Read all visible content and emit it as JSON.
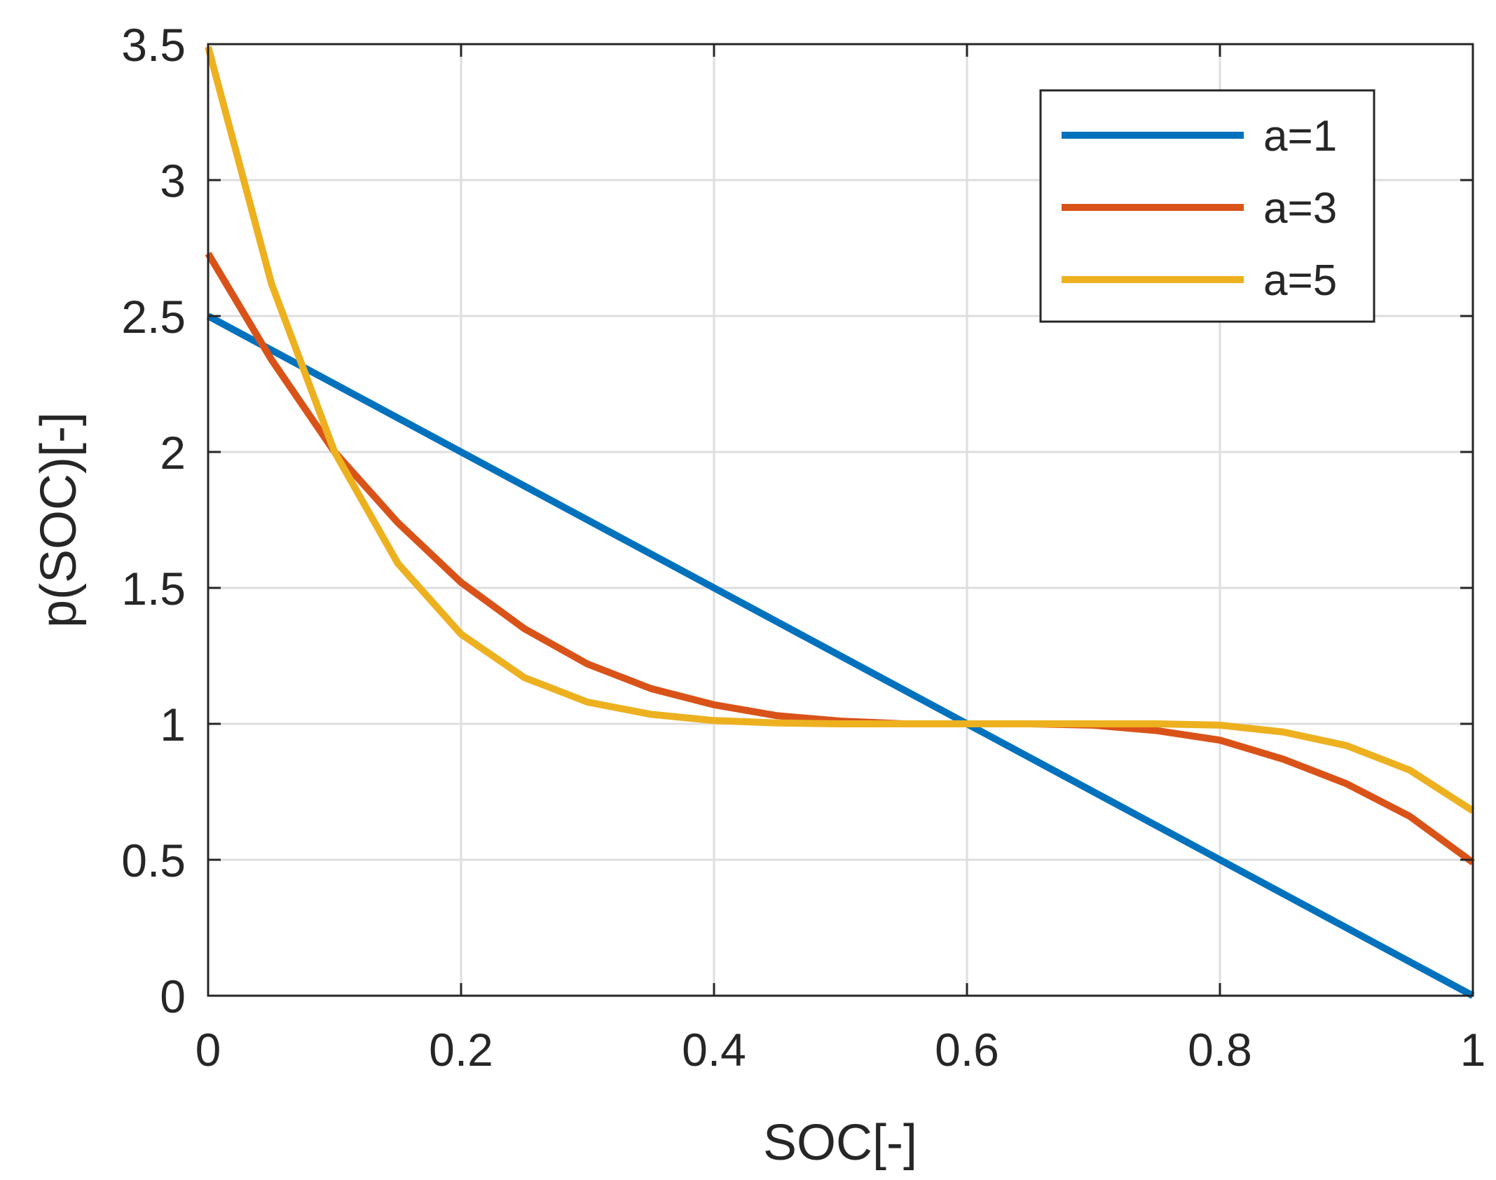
{
  "chart_data": {
    "type": "line",
    "title": "",
    "xlabel": "SOC[-]",
    "ylabel": "p(SOC)[-]",
    "xlim": [
      0,
      1
    ],
    "ylim": [
      0,
      3.5
    ],
    "grid": true,
    "legend_position": "top-right",
    "x_ticks": [
      0,
      0.2,
      0.4,
      0.6,
      0.8,
      1
    ],
    "x_tick_labels": [
      "0",
      "0.2",
      "0.4",
      "0.6",
      "0.8",
      "1"
    ],
    "y_ticks": [
      0,
      0.5,
      1,
      1.5,
      2,
      2.5,
      3,
      3.5
    ],
    "y_tick_labels": [
      "0",
      "0.5",
      "1",
      "1.5",
      "2",
      "2.5",
      "3",
      "3.5"
    ],
    "x": [
      0,
      0.05,
      0.1,
      0.15,
      0.2,
      0.25,
      0.3,
      0.35,
      0.4,
      0.45,
      0.5,
      0.55,
      0.6,
      0.65,
      0.7,
      0.75,
      0.8,
      0.85,
      0.9,
      0.95,
      1
    ],
    "series": [
      {
        "name": "a=1",
        "color": "#0072BD",
        "values": [
          2.5,
          2.375,
          2.25,
          2.125,
          2.0,
          1.875,
          1.75,
          1.625,
          1.5,
          1.375,
          1.25,
          1.125,
          1.0,
          0.875,
          0.75,
          0.625,
          0.5,
          0.375,
          0.25,
          0.125,
          0.0
        ]
      },
      {
        "name": "a=3",
        "color": "#D95319",
        "values": [
          2.73,
          2.34,
          2.0,
          1.74,
          1.52,
          1.35,
          1.22,
          1.13,
          1.07,
          1.03,
          1.01,
          1.0,
          1.0,
          1.0,
          0.995,
          0.975,
          0.94,
          0.87,
          0.78,
          0.66,
          0.49
        ]
      },
      {
        "name": "a=5",
        "color": "#EDB120",
        "values": [
          3.49,
          2.62,
          2.0,
          1.59,
          1.33,
          1.17,
          1.08,
          1.035,
          1.012,
          1.003,
          1.0,
          1.0,
          1.0,
          1.0,
          1.0,
          1.0,
          0.995,
          0.97,
          0.92,
          0.83,
          0.68
        ]
      }
    ]
  }
}
